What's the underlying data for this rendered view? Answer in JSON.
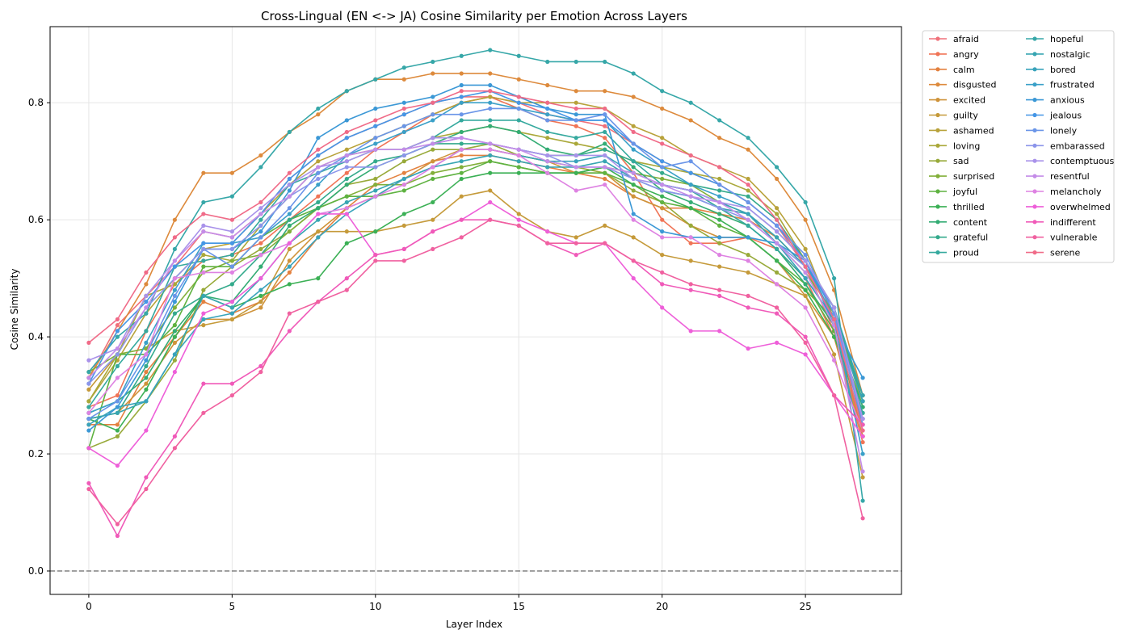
{
  "chart_data": {
    "type": "line",
    "title": "Cross-Lingual (EN <-> JA) Cosine Similarity per Emotion Across Layers",
    "xlabel": "Layer Index",
    "ylabel": "Cosine Similarity",
    "xlim": [
      -1.35,
      28.35
    ],
    "ylim": [
      -0.04,
      0.93
    ],
    "xticks": [
      "0",
      "5",
      "10",
      "15",
      "20",
      "25"
    ],
    "yticks": [
      "0.0",
      "0.2",
      "0.4",
      "0.6",
      "0.8"
    ],
    "grid": true,
    "legend": "outside-top-right, 2 columns",
    "reference_line": {
      "y": 0.0,
      "style": "dashed",
      "color": "#808080"
    },
    "x": [
      0,
      1,
      2,
      3,
      4,
      5,
      6,
      7,
      8,
      9,
      10,
      11,
      12,
      13,
      14,
      15,
      16,
      17,
      18,
      19,
      20,
      21,
      22,
      23,
      24,
      25,
      26,
      27
    ],
    "series": [
      {
        "name": "afraid",
        "color": "#f0717a",
        "values": [
          0.33,
          0.42,
          0.47,
          0.52,
          0.58,
          0.57,
          0.61,
          0.67,
          0.71,
          0.74,
          0.76,
          0.78,
          0.8,
          0.81,
          0.81,
          0.8,
          0.78,
          0.77,
          0.76,
          0.73,
          0.7,
          0.68,
          0.66,
          0.63,
          0.59,
          0.52,
          0.41,
          0.23
        ]
      },
      {
        "name": "angry",
        "color": "#f07456",
        "values": [
          0.28,
          0.3,
          0.41,
          0.49,
          0.53,
          0.54,
          0.56,
          0.6,
          0.64,
          0.68,
          0.72,
          0.75,
          0.78,
          0.8,
          0.81,
          0.79,
          0.77,
          0.76,
          0.74,
          0.68,
          0.6,
          0.56,
          0.56,
          0.57,
          0.55,
          0.5,
          0.4,
          0.22
        ]
      },
      {
        "name": "calm",
        "color": "#e3813f",
        "values": [
          0.25,
          0.25,
          0.34,
          0.4,
          0.46,
          0.44,
          0.46,
          0.51,
          0.57,
          0.62,
          0.66,
          0.68,
          0.7,
          0.71,
          0.71,
          0.7,
          0.69,
          0.68,
          0.67,
          0.64,
          0.62,
          0.62,
          0.61,
          0.6,
          0.57,
          0.52,
          0.43,
          0.23
        ]
      },
      {
        "name": "disgusted",
        "color": "#dd8a3c",
        "values": [
          0.33,
          0.41,
          0.49,
          0.6,
          0.68,
          0.68,
          0.71,
          0.75,
          0.78,
          0.82,
          0.84,
          0.84,
          0.85,
          0.85,
          0.85,
          0.84,
          0.83,
          0.82,
          0.82,
          0.81,
          0.79,
          0.77,
          0.74,
          0.72,
          0.67,
          0.6,
          0.48,
          0.3
        ]
      },
      {
        "name": "excited",
        "color": "#cf933a",
        "values": [
          0.26,
          0.27,
          0.32,
          0.39,
          0.43,
          0.43,
          0.45,
          0.53,
          0.58,
          0.62,
          0.64,
          0.67,
          0.7,
          0.72,
          0.72,
          0.71,
          0.7,
          0.68,
          0.68,
          0.64,
          0.62,
          0.59,
          0.57,
          0.57,
          0.53,
          0.47,
          0.4,
          0.23
        ]
      },
      {
        "name": "guilty",
        "color": "#c59a3a",
        "values": [
          0.31,
          0.37,
          0.38,
          0.41,
          0.42,
          0.43,
          0.46,
          0.55,
          0.58,
          0.58,
          0.58,
          0.59,
          0.6,
          0.64,
          0.65,
          0.61,
          0.58,
          0.57,
          0.59,
          0.57,
          0.54,
          0.53,
          0.52,
          0.51,
          0.49,
          0.47,
          0.37,
          0.16
        ]
      },
      {
        "name": "ashamed",
        "color": "#b8a23a",
        "values": [
          0.29,
          0.36,
          0.44,
          0.5,
          0.55,
          0.56,
          0.61,
          0.66,
          0.7,
          0.72,
          0.74,
          0.76,
          0.78,
          0.8,
          0.81,
          0.8,
          0.8,
          0.8,
          0.79,
          0.76,
          0.74,
          0.71,
          0.69,
          0.67,
          0.62,
          0.55,
          0.43,
          0.26
        ]
      },
      {
        "name": "loving",
        "color": "#aaa83a",
        "values": [
          0.29,
          0.37,
          0.47,
          0.49,
          0.54,
          0.53,
          0.59,
          0.64,
          0.69,
          0.71,
          0.72,
          0.72,
          0.74,
          0.75,
          0.76,
          0.75,
          0.74,
          0.73,
          0.72,
          0.7,
          0.69,
          0.68,
          0.67,
          0.65,
          0.61,
          0.53,
          0.45,
          0.28
        ]
      },
      {
        "name": "sad",
        "color": "#98aa3a",
        "values": [
          0.21,
          0.23,
          0.29,
          0.36,
          0.48,
          0.52,
          0.55,
          0.58,
          0.62,
          0.66,
          0.67,
          0.7,
          0.72,
          0.72,
          0.73,
          0.71,
          0.7,
          0.69,
          0.68,
          0.65,
          0.63,
          0.59,
          0.56,
          0.54,
          0.51,
          0.48,
          0.43,
          0.3
        ]
      },
      {
        "name": "surprised",
        "color": "#82af3a",
        "values": [
          0.34,
          0.37,
          0.38,
          0.45,
          0.51,
          0.53,
          0.54,
          0.58,
          0.62,
          0.64,
          0.66,
          0.66,
          0.68,
          0.69,
          0.7,
          0.69,
          0.68,
          0.68,
          0.69,
          0.68,
          0.67,
          0.66,
          0.63,
          0.61,
          0.56,
          0.51,
          0.44,
          0.29
        ]
      },
      {
        "name": "joyful",
        "color": "#5fb241",
        "values": [
          0.21,
          0.37,
          0.37,
          0.42,
          0.52,
          0.52,
          0.57,
          0.6,
          0.62,
          0.64,
          0.64,
          0.65,
          0.67,
          0.68,
          0.7,
          0.69,
          0.68,
          0.68,
          0.68,
          0.66,
          0.63,
          0.62,
          0.59,
          0.57,
          0.53,
          0.49,
          0.41,
          0.25
        ]
      },
      {
        "name": "thrilled",
        "color": "#3bb055",
        "values": [
          0.26,
          0.24,
          0.31,
          0.4,
          0.47,
          0.45,
          0.47,
          0.49,
          0.5,
          0.56,
          0.58,
          0.61,
          0.63,
          0.67,
          0.68,
          0.68,
          0.68,
          0.68,
          0.69,
          0.66,
          0.64,
          0.62,
          0.6,
          0.57,
          0.53,
          0.48,
          0.4,
          0.27
        ]
      },
      {
        "name": "content",
        "color": "#34ac74",
        "values": [
          0.27,
          0.29,
          0.33,
          0.41,
          0.47,
          0.46,
          0.52,
          0.59,
          0.62,
          0.66,
          0.69,
          0.71,
          0.73,
          0.75,
          0.76,
          0.75,
          0.72,
          0.71,
          0.73,
          0.69,
          0.65,
          0.63,
          0.61,
          0.59,
          0.55,
          0.49,
          0.42,
          0.28
        ]
      },
      {
        "name": "grateful",
        "color": "#34aa8c",
        "values": [
          0.26,
          0.27,
          0.35,
          0.44,
          0.47,
          0.49,
          0.54,
          0.6,
          0.63,
          0.67,
          0.7,
          0.71,
          0.73,
          0.73,
          0.73,
          0.72,
          0.71,
          0.71,
          0.72,
          0.7,
          0.68,
          0.66,
          0.65,
          0.64,
          0.6,
          0.53,
          0.45,
          0.29
        ]
      },
      {
        "name": "proud",
        "color": "#35a99e",
        "values": [
          0.28,
          0.35,
          0.41,
          0.52,
          0.53,
          0.54,
          0.6,
          0.66,
          0.68,
          0.7,
          0.72,
          0.72,
          0.74,
          0.77,
          0.77,
          0.77,
          0.75,
          0.74,
          0.75,
          0.7,
          0.66,
          0.65,
          0.62,
          0.59,
          0.55,
          0.5,
          0.43,
          0.27
        ]
      },
      {
        "name": "hopeful",
        "color": "#36a7a8",
        "values": [
          0.34,
          0.4,
          0.44,
          0.55,
          0.63,
          0.64,
          0.69,
          0.75,
          0.79,
          0.82,
          0.84,
          0.86,
          0.87,
          0.88,
          0.89,
          0.88,
          0.87,
          0.87,
          0.87,
          0.85,
          0.82,
          0.8,
          0.77,
          0.74,
          0.69,
          0.63,
          0.5,
          0.12
        ]
      },
      {
        "name": "nostalgic",
        "color": "#37a5b2",
        "values": [
          0.26,
          0.27,
          0.29,
          0.37,
          0.47,
          0.45,
          0.5,
          0.56,
          0.6,
          0.63,
          0.65,
          0.67,
          0.69,
          0.7,
          0.71,
          0.7,
          0.69,
          0.69,
          0.7,
          0.67,
          0.65,
          0.64,
          0.62,
          0.61,
          0.57,
          0.52,
          0.45,
          0.3
        ]
      },
      {
        "name": "bored",
        "color": "#38a3bb",
        "values": [
          0.25,
          0.28,
          0.29,
          0.37,
          0.43,
          0.44,
          0.48,
          0.52,
          0.57,
          0.61,
          0.64,
          0.67,
          0.69,
          0.72,
          0.72,
          0.71,
          0.7,
          0.7,
          0.71,
          0.68,
          0.66,
          0.65,
          0.63,
          0.61,
          0.56,
          0.5,
          0.43,
          0.29
        ]
      },
      {
        "name": "frustrated",
        "color": "#3aa0c8",
        "values": [
          0.27,
          0.29,
          0.39,
          0.48,
          0.56,
          0.56,
          0.57,
          0.61,
          0.66,
          0.71,
          0.73,
          0.75,
          0.77,
          0.8,
          0.8,
          0.79,
          0.78,
          0.77,
          0.77,
          0.72,
          0.69,
          0.66,
          0.64,
          0.62,
          0.58,
          0.53,
          0.43,
          0.2
        ]
      },
      {
        "name": "anxious",
        "color": "#3b98d6",
        "values": [
          0.24,
          0.28,
          0.36,
          0.46,
          0.55,
          0.55,
          0.58,
          0.65,
          0.74,
          0.77,
          0.79,
          0.8,
          0.81,
          0.83,
          0.83,
          0.81,
          0.79,
          0.78,
          0.78,
          0.61,
          0.58,
          0.57,
          0.57,
          0.57,
          0.56,
          0.53,
          0.42,
          0.33
        ]
      },
      {
        "name": "jealous",
        "color": "#4596e6",
        "values": [
          0.32,
          0.41,
          0.46,
          0.52,
          0.56,
          0.56,
          0.61,
          0.67,
          0.71,
          0.74,
          0.76,
          0.78,
          0.8,
          0.81,
          0.82,
          0.8,
          0.79,
          0.77,
          0.77,
          0.73,
          0.7,
          0.68,
          0.66,
          0.63,
          0.59,
          0.53,
          0.44,
          0.26
        ]
      },
      {
        "name": "lonely",
        "color": "#6a95e8",
        "values": [
          0.26,
          0.29,
          0.37,
          0.47,
          0.55,
          0.52,
          0.57,
          0.62,
          0.68,
          0.71,
          0.74,
          0.76,
          0.78,
          0.78,
          0.79,
          0.79,
          0.77,
          0.77,
          0.78,
          0.73,
          0.69,
          0.7,
          0.66,
          0.63,
          0.59,
          0.54,
          0.44,
          0.25
        ]
      },
      {
        "name": "embarassed",
        "color": "#8c95ea",
        "values": [
          0.32,
          0.37,
          0.45,
          0.5,
          0.55,
          0.55,
          0.59,
          0.64,
          0.67,
          0.69,
          0.69,
          0.71,
          0.73,
          0.74,
          0.73,
          0.72,
          0.71,
          0.69,
          0.69,
          0.67,
          0.65,
          0.64,
          0.62,
          0.6,
          0.56,
          0.52,
          0.43,
          0.26
        ]
      },
      {
        "name": "contemptuous",
        "color": "#a992ea",
        "values": [
          0.36,
          0.38,
          0.47,
          0.53,
          0.59,
          0.58,
          0.62,
          0.66,
          0.69,
          0.7,
          0.72,
          0.72,
          0.74,
          0.74,
          0.73,
          0.72,
          0.71,
          0.71,
          0.71,
          0.67,
          0.66,
          0.65,
          0.63,
          0.62,
          0.58,
          0.53,
          0.45,
          0.26
        ]
      },
      {
        "name": "resentful",
        "color": "#c48ce8",
        "values": [
          0.33,
          0.38,
          0.45,
          0.53,
          0.58,
          0.57,
          0.61,
          0.64,
          0.69,
          0.71,
          0.72,
          0.72,
          0.73,
          0.74,
          0.73,
          0.72,
          0.7,
          0.69,
          0.69,
          0.68,
          0.66,
          0.64,
          0.63,
          0.6,
          0.56,
          0.51,
          0.42,
          0.17
        ]
      },
      {
        "name": "melancholy",
        "color": "#de82e2",
        "values": [
          0.27,
          0.33,
          0.37,
          0.5,
          0.51,
          0.51,
          0.54,
          0.56,
          0.61,
          0.62,
          0.64,
          0.66,
          0.69,
          0.72,
          0.72,
          0.71,
          0.68,
          0.65,
          0.66,
          0.6,
          0.57,
          0.57,
          0.54,
          0.53,
          0.49,
          0.45,
          0.36,
          0.24
        ]
      },
      {
        "name": "overwhelmed",
        "color": "#ee5fd9",
        "values": [
          0.21,
          0.18,
          0.24,
          0.34,
          0.44,
          0.46,
          0.5,
          0.56,
          0.61,
          0.61,
          0.54,
          0.55,
          0.58,
          0.6,
          0.63,
          0.6,
          0.58,
          0.56,
          0.56,
          0.5,
          0.45,
          0.41,
          0.41,
          0.38,
          0.39,
          0.37,
          0.3,
          0.23
        ]
      },
      {
        "name": "indifferent",
        "color": "#f05ab9",
        "values": [
          0.15,
          0.06,
          0.16,
          0.23,
          0.32,
          0.32,
          0.35,
          0.41,
          0.46,
          0.5,
          0.54,
          0.55,
          0.58,
          0.6,
          0.6,
          0.59,
          0.56,
          0.54,
          0.56,
          0.53,
          0.49,
          0.48,
          0.47,
          0.45,
          0.44,
          0.4,
          0.3,
          0.25
        ]
      },
      {
        "name": "vulnerable",
        "color": "#f061a0",
        "values": [
          0.14,
          0.08,
          0.14,
          0.21,
          0.27,
          0.3,
          0.34,
          0.44,
          0.46,
          0.48,
          0.53,
          0.53,
          0.55,
          0.57,
          0.6,
          0.59,
          0.56,
          0.56,
          0.56,
          0.53,
          0.51,
          0.49,
          0.48,
          0.47,
          0.45,
          0.39,
          0.3,
          0.09
        ]
      },
      {
        "name": "serene",
        "color": "#f06b88",
        "values": [
          0.39,
          0.43,
          0.51,
          0.57,
          0.61,
          0.6,
          0.63,
          0.68,
          0.72,
          0.75,
          0.77,
          0.79,
          0.8,
          0.82,
          0.82,
          0.81,
          0.8,
          0.79,
          0.79,
          0.75,
          0.73,
          0.71,
          0.69,
          0.66,
          0.6,
          0.52,
          0.43,
          0.24
        ]
      }
    ]
  }
}
